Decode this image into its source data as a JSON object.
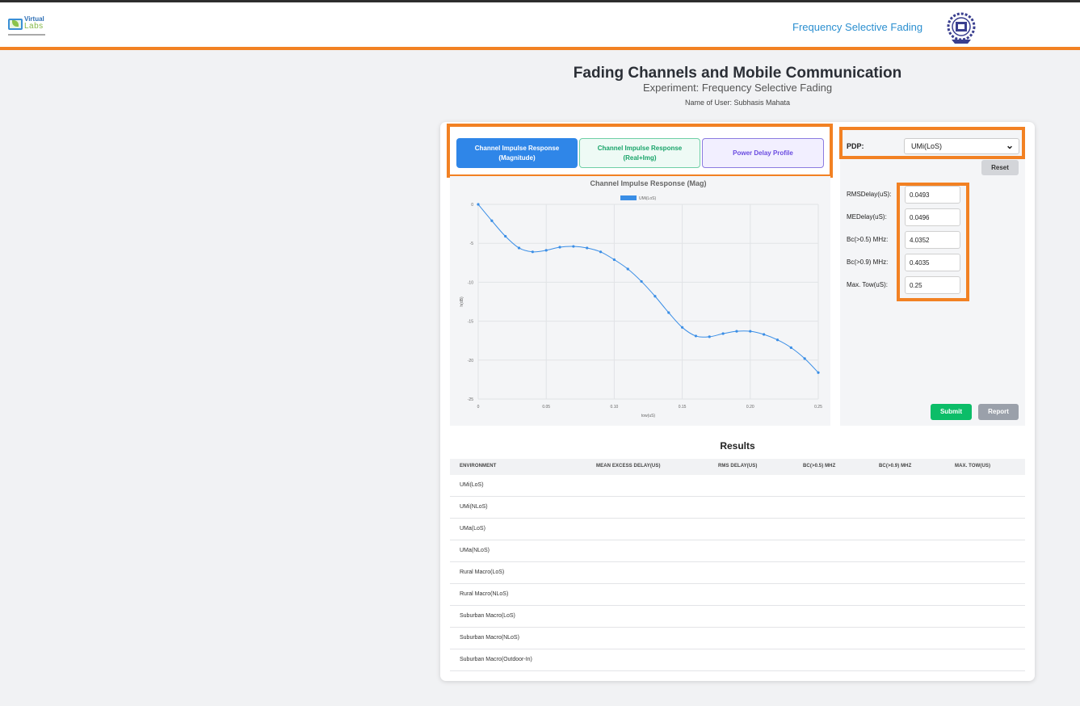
{
  "header": {
    "logo_line1": "Virtual",
    "logo_line2": "Labs",
    "title": "Frequency Selective Fading"
  },
  "page": {
    "title": "Fading Channels and Mobile Communication",
    "subtitle": "Experiment: Frequency Selective Fading",
    "user": "Name of User: Subhasis Mahata"
  },
  "tabs": [
    {
      "line1": "Channel Impulse Response",
      "line2": "(Magnitude)",
      "active": true
    },
    {
      "line1": "Channel Impulse Response",
      "line2": "(Real+Img)",
      "active": false
    },
    {
      "line1": "Power Delay Profile",
      "line2": "",
      "active": false
    }
  ],
  "controls": {
    "pdp_label": "PDP:",
    "pdp_value": "UMi(LoS)",
    "reset_label": "Reset",
    "params": [
      {
        "label": "RMSDelay(uS):",
        "value": "0.0493"
      },
      {
        "label": "MEDelay(uS):",
        "value": "0.0496"
      },
      {
        "label": "Bc(>0.5) MHz:",
        "value": "4.0352"
      },
      {
        "label": "Bc(>0.9) MHz:",
        "value": "0.4035"
      },
      {
        "label": "Max. Tow(uS):",
        "value": "0.25"
      }
    ],
    "submit_label": "Submit",
    "report_label": "Report"
  },
  "chart_data": {
    "type": "line",
    "title": "Channel Impulse Response (Mag)",
    "xlabel": "tow(uS)",
    "ylabel": "h(dB)",
    "xlim": [
      0,
      0.25
    ],
    "ylim": [
      -25,
      0
    ],
    "xticks": [
      "0",
      "0.05",
      "0.10",
      "0.15",
      "0.20",
      "0.25"
    ],
    "yticks": [
      "0",
      "-5",
      "-10",
      "-15",
      "-20",
      "-25"
    ],
    "grid": true,
    "legend_position": "top-center",
    "series": [
      {
        "name": "UMi(LoS)",
        "color": "#3a8ee6",
        "x": [
          0,
          0.01,
          0.02,
          0.03,
          0.04,
          0.05,
          0.06,
          0.07,
          0.08,
          0.09,
          0.1,
          0.11,
          0.12,
          0.13,
          0.14,
          0.15,
          0.16,
          0.17,
          0.18,
          0.19,
          0.2,
          0.21,
          0.22,
          0.23,
          0.24,
          0.25
        ],
        "y": [
          0,
          -2.1,
          -4.1,
          -5.6,
          -6.1,
          -5.9,
          -5.5,
          -5.4,
          -5.6,
          -6.1,
          -7.1,
          -8.3,
          -9.9,
          -11.8,
          -13.9,
          -15.8,
          -16.9,
          -17.0,
          -16.6,
          -16.3,
          -16.3,
          -16.7,
          -17.4,
          -18.4,
          -19.8,
          -21.6
        ]
      }
    ]
  },
  "results": {
    "title": "Results",
    "columns": [
      "ENVIRONMENT",
      "MEAN EXCESS DELAY(US)",
      "RMS DELAY(US)",
      "BC(>0.5) MHZ",
      "BC(>0.9) MHZ",
      "MAX. TOW(US)"
    ],
    "rows": [
      "UMi(LoS)",
      "UMi(NLoS)",
      "UMa(LoS)",
      "UMa(NLoS)",
      "Rural Macro(LoS)",
      "Rural Macro(NLoS)",
      "Suburban Macro(LoS)",
      "Suburban Macro(NLoS)",
      "Suburban Macro(Outdoor-In)"
    ]
  },
  "colors": {
    "accent_orange": "#f28123",
    "tab_active": "#2f86e8",
    "submit_green": "#0cbd68",
    "report_gray": "#9aa0aa"
  }
}
